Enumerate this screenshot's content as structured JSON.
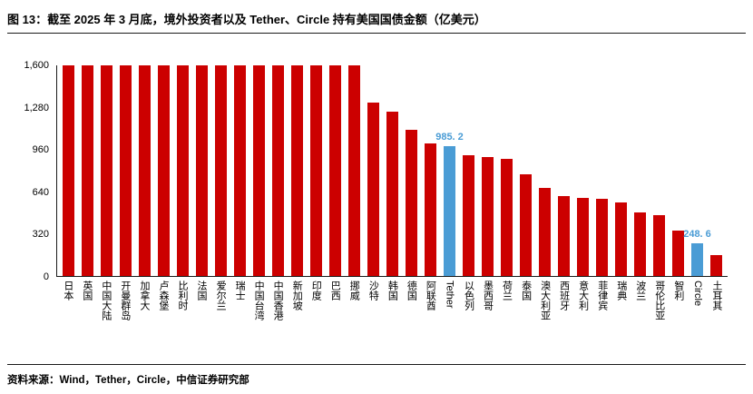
{
  "header": {
    "title": "图 13：截至 2025 年 3 月底，境外投资者以及 Tether、Circle 持有美国国债金额（亿美元）"
  },
  "footer": {
    "source": "资料来源：Wind，Tether，Circle，中信证券研究部"
  },
  "chart_data": {
    "type": "bar",
    "title": "截至 2025 年 3 月底，境外投资者以及 Tether、Circle 持有美国国债金额（亿美元）",
    "xlabel": "",
    "ylabel": "",
    "ylim": [
      0,
      1600
    ],
    "yticks": [
      0,
      320,
      640,
      960,
      1280,
      1600
    ],
    "ytick_labels": [
      "0",
      "320",
      "640",
      "960",
      "1,280",
      "1,600"
    ],
    "grid": false,
    "legend": "none",
    "bar_color": "#cc0000",
    "highlight_color": "#4a9cd5",
    "note": "前 16 根柱达到坐标轴上限 1,600（截断显示）",
    "bars": [
      {
        "label": "日本",
        "value": 1600
      },
      {
        "label": "英国",
        "value": 1600
      },
      {
        "label": "中国大陆",
        "value": 1600
      },
      {
        "label": "开曼群岛",
        "value": 1600
      },
      {
        "label": "加拿大",
        "value": 1600
      },
      {
        "label": "卢森堡",
        "value": 1600
      },
      {
        "label": "比利时",
        "value": 1600
      },
      {
        "label": "法国",
        "value": 1600
      },
      {
        "label": "爱尔兰",
        "value": 1600
      },
      {
        "label": "瑞士",
        "value": 1600
      },
      {
        "label": "中国台湾",
        "value": 1600
      },
      {
        "label": "中国香港",
        "value": 1600
      },
      {
        "label": "新加坡",
        "value": 1600
      },
      {
        "label": "印度",
        "value": 1600
      },
      {
        "label": "巴西",
        "value": 1600
      },
      {
        "label": "挪威",
        "value": 1600
      },
      {
        "label": "沙特",
        "value": 1315
      },
      {
        "label": "韩国",
        "value": 1250
      },
      {
        "label": "德国",
        "value": 1110
      },
      {
        "label": "阿联酋",
        "value": 1005
      },
      {
        "label": "Tether",
        "value": 985.2,
        "highlight": true,
        "value_label": "985. 2"
      },
      {
        "label": "以色列",
        "value": 920
      },
      {
        "label": "墨西哥",
        "value": 905
      },
      {
        "label": "荷兰",
        "value": 890
      },
      {
        "label": "泰国",
        "value": 775
      },
      {
        "label": "澳大利亚",
        "value": 670
      },
      {
        "label": "西班牙",
        "value": 610
      },
      {
        "label": "意大利",
        "value": 595
      },
      {
        "label": "菲律宾",
        "value": 585
      },
      {
        "label": "瑞典",
        "value": 560
      },
      {
        "label": "波兰",
        "value": 480
      },
      {
        "label": "哥伦比亚",
        "value": 465
      },
      {
        "label": "智利",
        "value": 345
      },
      {
        "label": "Circle",
        "value": 248.6,
        "highlight": true,
        "value_label": "248. 6"
      },
      {
        "label": "土耳其",
        "value": 160
      }
    ]
  }
}
